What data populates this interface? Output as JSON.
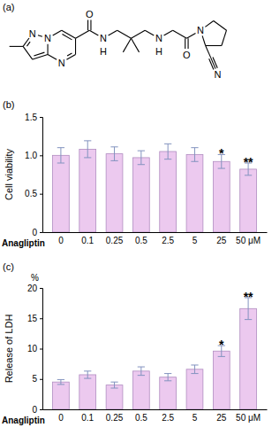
{
  "panels": [
    "(a)",
    "(b)",
    "(c)"
  ],
  "structure": {
    "atoms": [
      "N",
      "N",
      "N",
      "O",
      "N",
      "H",
      "N",
      "H",
      "O",
      "N",
      "N"
    ]
  },
  "chart_data": [
    {
      "type": "bar",
      "y_label": "Cell viability",
      "x_label": "Anagliptin",
      "categories": [
        "0",
        "0.1",
        "0.25",
        "0.5",
        "2.5",
        "5",
        "25",
        "50 μM"
      ],
      "values": [
        1.0,
        1.08,
        1.02,
        0.97,
        1.05,
        1.01,
        0.92,
        0.82
      ],
      "errors": [
        0.1,
        0.11,
        0.09,
        0.09,
        0.1,
        0.09,
        0.09,
        0.08
      ],
      "color": "#ecc9ef",
      "ylim": [
        0,
        1.5
      ],
      "yticks": [
        0,
        {
          "value": 0.5,
          "label": "0.5"
        },
        {
          "value": 1,
          "label": "1.0"
        },
        {
          "value": 1.5,
          "label": "1.5"
        }
      ],
      "annotations": [
        {
          "index": 6,
          "text": "*"
        },
        {
          "index": 7,
          "text": "**"
        }
      ]
    },
    {
      "type": "bar",
      "y_label": "Release of LDH",
      "y_unit_label": "%",
      "x_label": "Anagliptin",
      "categories": [
        "0",
        "0.1",
        "0.25",
        "0.5",
        "2.5",
        "5",
        "25",
        "50 μM"
      ],
      "values": [
        4.5,
        5.7,
        4.0,
        6.3,
        5.3,
        6.6,
        9.6,
        16.6
      ],
      "errors": [
        0.4,
        0.6,
        0.5,
        0.7,
        0.6,
        0.7,
        0.9,
        1.8
      ],
      "color": "#ecc9ef",
      "ylim": [
        0,
        20
      ],
      "yticks": [
        0,
        5,
        10,
        15,
        20
      ],
      "annotations": [
        {
          "index": 6,
          "text": "*"
        },
        {
          "index": 7,
          "text": "**"
        }
      ]
    }
  ]
}
